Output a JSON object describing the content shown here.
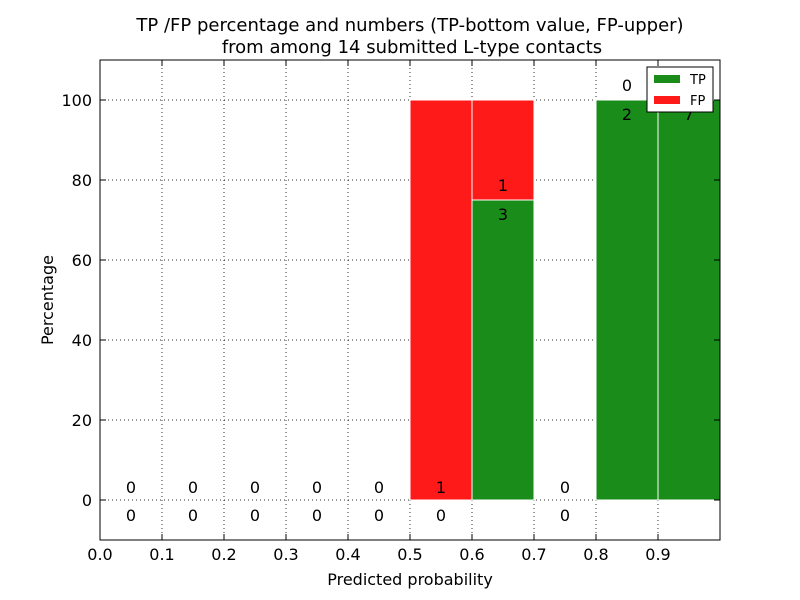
{
  "chart_data": {
    "type": "bar",
    "title": [
      "TP /FP percentage and numbers (TP-bottom value, FP-upper)",
      "from among 14 submitted L-type contacts"
    ],
    "xlabel": "Predicted probability",
    "ylabel": "Percentage",
    "xlim": [
      0,
      1.0
    ],
    "ylim": [
      -10,
      110
    ],
    "xticks": [
      "0.0",
      "0.1",
      "0.2",
      "0.3",
      "0.4",
      "0.5",
      "0.6",
      "0.7",
      "0.8",
      "0.9"
    ],
    "xtick_values": [
      0.0,
      0.1,
      0.2,
      0.3,
      0.4,
      0.5,
      0.6,
      0.7,
      0.8,
      0.9
    ],
    "yticks": [
      "0",
      "20",
      "40",
      "60",
      "80",
      "100"
    ],
    "ytick_values": [
      0,
      20,
      40,
      60,
      80,
      100
    ],
    "grid": true,
    "stacked": true,
    "bin_edges": [
      0.0,
      0.1,
      0.2,
      0.3,
      0.4,
      0.5,
      0.6,
      0.7,
      0.8,
      0.9,
      1.0
    ],
    "series": [
      {
        "name": "TP",
        "color": "#1a8c1a",
        "values": [
          0,
          0,
          0,
          0,
          0,
          0,
          75,
          0,
          100,
          100
        ]
      },
      {
        "name": "FP",
        "color": "#ff1a1a",
        "values": [
          0,
          0,
          0,
          0,
          0,
          100,
          25,
          0,
          0,
          0
        ]
      }
    ],
    "counts": {
      "tp": [
        "0",
        "0",
        "0",
        "0",
        "0",
        "0",
        "3",
        "0",
        "2",
        "7"
      ],
      "fp": [
        "0",
        "0",
        "0",
        "0",
        "0",
        "1",
        "1",
        "0",
        "0",
        ""
      ]
    },
    "legend": {
      "location": "top-right",
      "entries": [
        "TP",
        "FP"
      ]
    }
  }
}
